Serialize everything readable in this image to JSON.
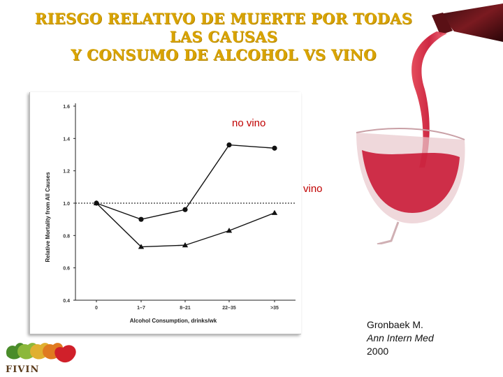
{
  "title": {
    "line1": "RIESGO RELATIVO DE MUERTE POR TODAS",
    "line2": "LAS CAUSAS",
    "line3": "Y CONSUMO DE ALCOHOL VS VINO"
  },
  "labels": {
    "no_vino": "no vino",
    "vino": "vino"
  },
  "citation": {
    "author": "Gronbaek M.",
    "journal": "Ann Intern Med",
    "year": "2000"
  },
  "logo": {
    "text": "FIVIN"
  },
  "chart_data": {
    "type": "line",
    "xlabel": "Alcohol Consumption, drinks/wk",
    "ylabel": "Relative Mortality from All Causes",
    "categories": [
      "0",
      "1–7",
      "8–21",
      "22–35",
      ">35"
    ],
    "yticks": [
      "0.4",
      "0.6",
      "0.8",
      "1.0",
      "1.2",
      "1.4",
      "1.6"
    ],
    "ylim": [
      0.4,
      1.6
    ],
    "reference_line": 1.0,
    "series": [
      {
        "name": "no vino",
        "marker": "circle",
        "values": [
          1.0,
          0.9,
          0.96,
          1.36,
          1.34
        ]
      },
      {
        "name": "vino",
        "marker": "triangle",
        "values": [
          1.0,
          0.73,
          0.74,
          0.83,
          0.94
        ]
      }
    ],
    "grid": false
  },
  "colors": {
    "title": "#d9a400",
    "label": "#c00000",
    "wine": "#c8102e"
  }
}
